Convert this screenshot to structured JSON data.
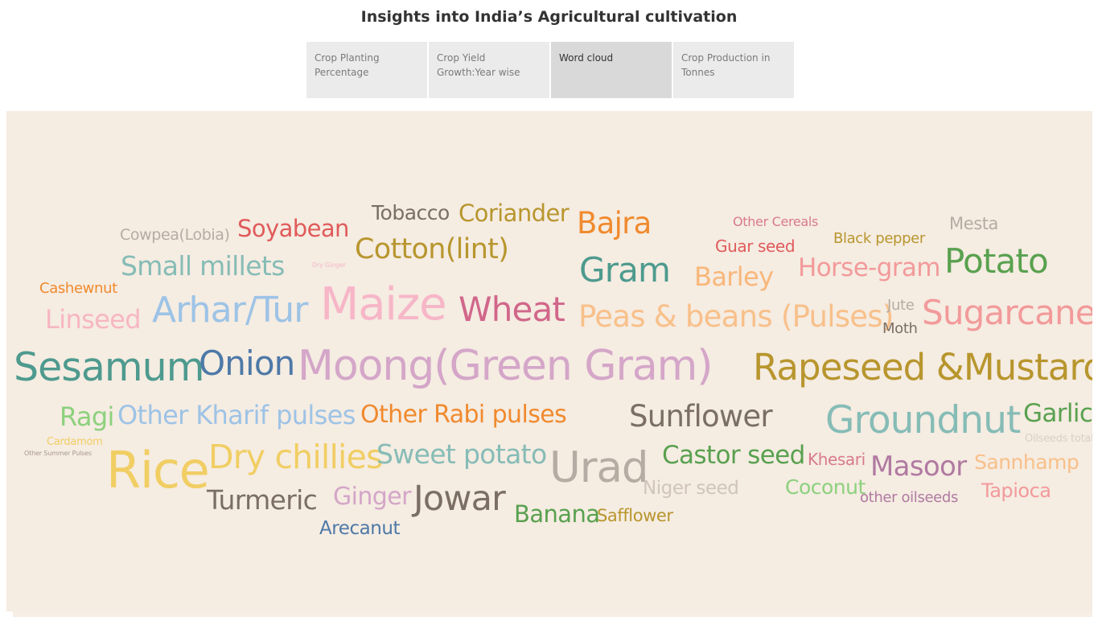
{
  "title": "Insights into India’s Agricultural cultivation",
  "tabs": [
    {
      "label": "Crop Planting Percentage",
      "active": false
    },
    {
      "label": "Crop Yield Growth:Year wise",
      "active": false
    },
    {
      "label": "Word cloud",
      "active": true
    },
    {
      "label": "Crop Production in Tonnes",
      "active": false
    }
  ],
  "chart_data": {
    "type": "word_cloud",
    "words": [
      {
        "text": "Tobacco",
        "color": "#7b6f64"
      },
      {
        "text": "Coriander",
        "color": "#b8962e"
      },
      {
        "text": "Bajra",
        "color": "#f08a2e"
      },
      {
        "text": "Other Cereals",
        "color": "#d97a8c"
      },
      {
        "text": "Mesta",
        "color": "#b5aca4"
      },
      {
        "text": "Cowpea(Lobia)",
        "color": "#b5aca4"
      },
      {
        "text": "Soyabean",
        "color": "#e05b5b"
      },
      {
        "text": "Cotton(lint)",
        "color": "#b8962e"
      },
      {
        "text": "Guar seed",
        "color": "#e05b5b"
      },
      {
        "text": "Black pepper",
        "color": "#b8962e"
      },
      {
        "text": "Small millets",
        "color": "#86bcb6"
      },
      {
        "text": "Dry Ginger",
        "color": "#f5b8c8"
      },
      {
        "text": "Gram",
        "color": "#4e9a8e"
      },
      {
        "text": "Barley",
        "color": "#f8b77a"
      },
      {
        "text": "Horse-gram",
        "color": "#f29a9a"
      },
      {
        "text": "Potato",
        "color": "#59a14f"
      },
      {
        "text": "Cashewnut",
        "color": "#f08a2e"
      },
      {
        "text": "Linseed",
        "color": "#f7b6c2"
      },
      {
        "text": "Arhar/Tur",
        "color": "#9dc3e6"
      },
      {
        "text": "Maize",
        "color": "#f7b6c8"
      },
      {
        "text": "Wheat",
        "color": "#d1668a"
      },
      {
        "text": "Peas & beans (Pulses)",
        "color": "#f8c08a"
      },
      {
        "text": "Jute",
        "color": "#b5aca4"
      },
      {
        "text": "Moth",
        "color": "#7b6f64"
      },
      {
        "text": "Sugarcane",
        "color": "#f29a9a"
      },
      {
        "text": "Sesamum",
        "color": "#4e9a8e"
      },
      {
        "text": "Onion",
        "color": "#4e79a7"
      },
      {
        "text": "Moong(Green Gram)",
        "color": "#d4a6c8"
      },
      {
        "text": "Rapeseed &Mustard",
        "color": "#b8962e"
      },
      {
        "text": "Ragi",
        "color": "#8cd17d"
      },
      {
        "text": "Other Kharif pulses",
        "color": "#9dc3e6"
      },
      {
        "text": "Other Rabi pulses",
        "color": "#f08a2e"
      },
      {
        "text": "Sunflower",
        "color": "#7b6f64"
      },
      {
        "text": "Groundnut",
        "color": "#86bcb6"
      },
      {
        "text": "Garlic",
        "color": "#59a14f"
      },
      {
        "text": "Cardamom",
        "color": "#f1ce63"
      },
      {
        "text": "Oilseeds total",
        "color": "#d9cfc6"
      },
      {
        "text": "Other Summer Pulses",
        "color": "#a89890"
      },
      {
        "text": "Rice",
        "color": "#f1ce63"
      },
      {
        "text": "Dry chillies",
        "color": "#f1ce63"
      },
      {
        "text": "Sweet potato",
        "color": "#86bcb6"
      },
      {
        "text": "Urad",
        "color": "#b5aca4"
      },
      {
        "text": "Castor seed",
        "color": "#59a14f"
      },
      {
        "text": "Khesari",
        "color": "#d97a8c"
      },
      {
        "text": "Masoor",
        "color": "#b07aa1"
      },
      {
        "text": "Sannhamp",
        "color": "#f8c08a"
      },
      {
        "text": "Turmeric",
        "color": "#7b6f64"
      },
      {
        "text": "Ginger",
        "color": "#d4a6c8"
      },
      {
        "text": "Jowar",
        "color": "#7b6f64"
      },
      {
        "text": "Niger seed",
        "color": "#d0c4bc"
      },
      {
        "text": "Coconut",
        "color": "#8cd17d"
      },
      {
        "text": "other oilseeds",
        "color": "#b07aa1"
      },
      {
        "text": "Tapioca",
        "color": "#f29a9a"
      },
      {
        "text": "Banana",
        "color": "#59a14f"
      },
      {
        "text": "Safflower",
        "color": "#b8962e"
      },
      {
        "text": "Arecanut",
        "color": "#4e79a7"
      }
    ]
  }
}
